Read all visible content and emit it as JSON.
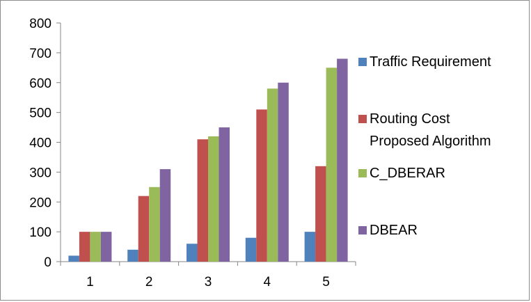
{
  "chart_data": {
    "type": "bar",
    "title": "",
    "xlabel": "",
    "ylabel": "",
    "categories": [
      "1",
      "2",
      "3",
      "4",
      "5"
    ],
    "ylim": [
      0,
      800
    ],
    "yticks": [
      "0",
      "100",
      "200",
      "300",
      "400",
      "500",
      "600",
      "700",
      "800"
    ],
    "grid": false,
    "legend_position": "right",
    "series": [
      {
        "name": "Traffic Requirement",
        "color": "#4F81BD",
        "values": [
          20,
          40,
          60,
          80,
          100
        ]
      },
      {
        "name": "Routing Cost Proposed Algorithm",
        "legend_lines": [
          "Routing Cost",
          "Proposed Algorithm"
        ],
        "color": "#C0504D",
        "values": [
          100,
          220,
          410,
          510,
          320
        ]
      },
      {
        "name": "C_DBERAR",
        "color": "#9BBB59",
        "values": [
          100,
          250,
          420,
          580,
          650
        ]
      },
      {
        "name": "DBEAR",
        "color": "#8064A2",
        "values": [
          100,
          310,
          450,
          600,
          680
        ]
      }
    ]
  }
}
